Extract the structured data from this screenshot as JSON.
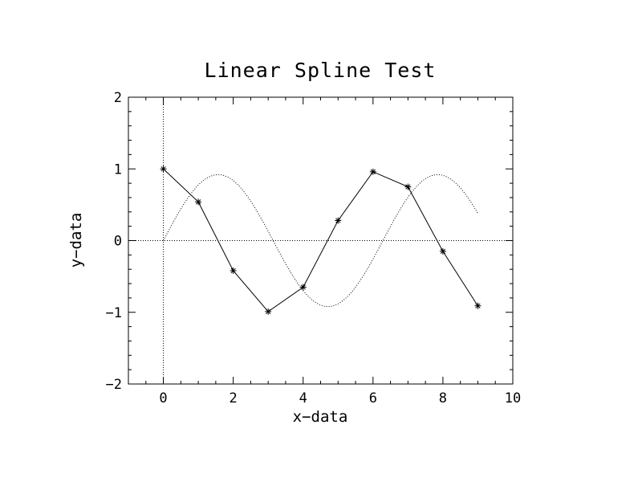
{
  "chart_data": {
    "type": "line",
    "title": "Linear Spline Test",
    "xlabel": "x−data",
    "ylabel": "y−data",
    "xlim": [
      -1,
      10
    ],
    "ylim": [
      -2,
      2
    ],
    "x_ticks": [
      0,
      2,
      4,
      6,
      8,
      10
    ],
    "y_ticks": [
      -2,
      -1,
      0,
      1,
      2
    ],
    "x_tick_labels": [
      "0",
      "2",
      "4",
      "6",
      "8",
      "10"
    ],
    "y_tick_labels": [
      "−2",
      "−1",
      "0",
      "1",
      "2"
    ],
    "zero_lines": true,
    "grid": false,
    "series": [
      {
        "style": "solid-line-with-asterisk-markers",
        "x": [
          0,
          1,
          2,
          3,
          4,
          5,
          6,
          7,
          8,
          9
        ],
        "y": [
          1.0,
          0.54,
          -0.42,
          -0.99,
          -0.65,
          0.28,
          0.96,
          0.75,
          -0.15,
          -0.91
        ]
      },
      {
        "style": "dotted-curve",
        "x_range": [
          0,
          9
        ],
        "function": "0.92*sin(x)"
      }
    ]
  }
}
